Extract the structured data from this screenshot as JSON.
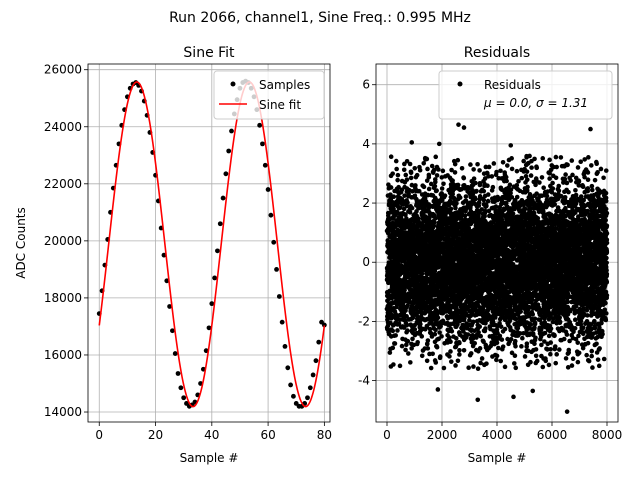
{
  "figure": {
    "suptitle": "Run 2066, channel1, Sine Freq.: 0.995 MHz"
  },
  "colors": {
    "samples": "#000000",
    "fit": "#ff0000",
    "residuals": "#000000",
    "grid": "#b0b0b0"
  },
  "chart_data": [
    {
      "type": "line",
      "title": "Sine Fit",
      "xlabel": "Sample #",
      "ylabel": "ADC Counts",
      "xlim": [
        -4,
        82
      ],
      "ylim": [
        13650,
        26200
      ],
      "xticks": [
        0,
        20,
        40,
        60,
        80
      ],
      "yticks": [
        14000,
        16000,
        18000,
        20000,
        22000,
        24000,
        26000
      ],
      "grid": true,
      "legend": {
        "position": "top-right",
        "entries": [
          "Samples",
          "Sine fit"
        ]
      },
      "fit_model": {
        "amplitude": 5690,
        "offset": 19880,
        "period": 40.0,
        "phase_deg": -30
      },
      "x_sample_range": [
        0,
        80
      ],
      "series": [
        {
          "name": "Samples",
          "style": "markers",
          "x": [
            0,
            1,
            2,
            3,
            4,
            5,
            6,
            7,
            8,
            9,
            10,
            11,
            12,
            13,
            14,
            15,
            16,
            17,
            18,
            19,
            20,
            21,
            22,
            23,
            24,
            25,
            26,
            27,
            28,
            29,
            30,
            31,
            32,
            33,
            34,
            35,
            36,
            37,
            38,
            39,
            40,
            41,
            42,
            43,
            44,
            45,
            46,
            47,
            48,
            49,
            50,
            51,
            52,
            53,
            54,
            55,
            56,
            57,
            58,
            59,
            60,
            61,
            62,
            63,
            64,
            65,
            66,
            67,
            68,
            69,
            70,
            71,
            72,
            73,
            74,
            75,
            76,
            77,
            78,
            79,
            80
          ],
          "y": [
            17450,
            18250,
            19150,
            20050,
            21000,
            21850,
            22650,
            23400,
            24050,
            24600,
            25050,
            25350,
            25500,
            25550,
            25450,
            25250,
            24900,
            24400,
            23800,
            23100,
            22300,
            21400,
            20450,
            19500,
            18600,
            17700,
            16850,
            16050,
            15350,
            14850,
            14500,
            14300,
            14200,
            14250,
            14350,
            14600,
            15000,
            15500,
            16150,
            16950,
            17800,
            18700,
            19650,
            20600,
            21500,
            22350,
            23150,
            23850,
            24450,
            24950,
            25350,
            25550,
            25600,
            25550,
            25350,
            25050,
            24600,
            24050,
            23400,
            22650,
            21800,
            20900,
            19950,
            19000,
            18050,
            17150,
            16300,
            15550,
            14950,
            14550,
            14300,
            14200,
            14200,
            14300,
            14500,
            14850,
            15300,
            15800,
            16450,
            17150,
            17050
          ]
        },
        {
          "name": "Sine fit",
          "style": "line"
        }
      ]
    },
    {
      "type": "scatter",
      "title": "Residuals",
      "xlabel": "Sample #",
      "ylabel": "",
      "xlim": [
        -400,
        8400
      ],
      "ylim": [
        -5.4,
        6.7
      ],
      "xticks": [
        0,
        2000,
        4000,
        6000,
        8000
      ],
      "yticks": [
        -4,
        -2,
        0,
        2,
        4,
        6
      ],
      "grid": true,
      "legend": {
        "position": "top-right",
        "entries": [
          "Residuals",
          "μ = 0.0, σ = 1.31"
        ]
      },
      "series": [
        {
          "name": "Residuals",
          "x_range": [
            0,
            8000
          ],
          "n_points": 8000,
          "mean": 0.0,
          "std": 1.31,
          "outliers": [
            {
              "x": 2600,
              "y": 4.65
            },
            {
              "x": 2800,
              "y": 4.55
            },
            {
              "x": 7400,
              "y": 4.5
            },
            {
              "x": 900,
              "y": 4.05
            },
            {
              "x": 1900,
              "y": 4.0
            },
            {
              "x": 4500,
              "y": 3.95
            },
            {
              "x": 3300,
              "y": -4.65
            },
            {
              "x": 4600,
              "y": -4.55
            },
            {
              "x": 6550,
              "y": -5.05
            },
            {
              "x": 1850,
              "y": -4.3
            },
            {
              "x": 5300,
              "y": -4.35
            }
          ]
        }
      ]
    }
  ]
}
